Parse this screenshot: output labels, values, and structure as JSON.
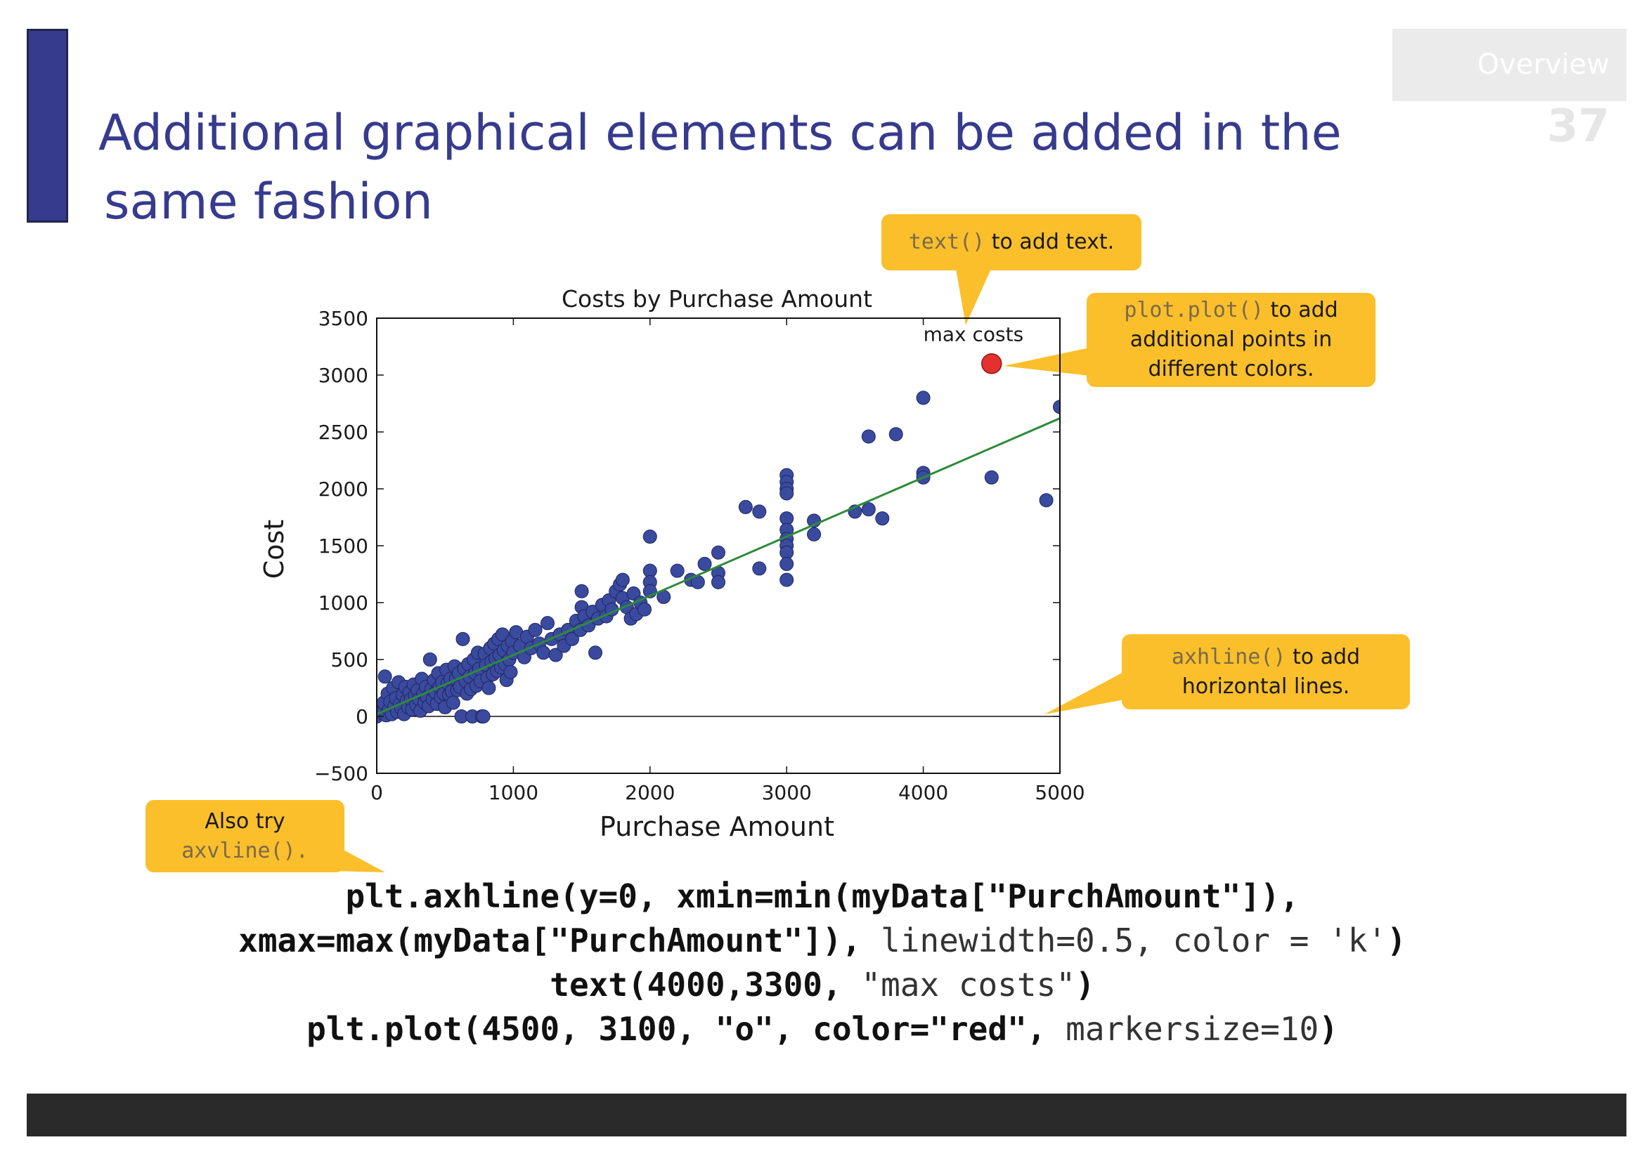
{
  "slide": {
    "title_line1": "Additional graphical elements can be added in the",
    "title_line2": "same fashion",
    "section": "Overview",
    "page_number": "37",
    "accent_color": "#363b8e",
    "callout_color": "#fbbf2c"
  },
  "callouts": {
    "text": {
      "code": "text()",
      "rest": " to add text."
    },
    "plot": {
      "code": "plot.plot()",
      "rest1": " to add",
      "line2": "additional points in",
      "line3": "different colors."
    },
    "axhline": {
      "code": "axhline()",
      "rest1": " to add",
      "line2": "horizontal lines."
    },
    "also_try": {
      "line1": "Also try",
      "code": "axvline()",
      "suffix": "."
    }
  },
  "code": {
    "l1_bold": "plt.axhline(y=0, xmin=min(myData[\"PurchAmount\"]),",
    "l2_bold": "xmax=max(myData[\"PurchAmount\"]),",
    "l2_reg": " linewidth=0.5, color = 'k'",
    "l2_end": ")",
    "l3_bold": "text(4000,3300,",
    "l3_reg": " \"max costs\"",
    "l3_end": ")",
    "l4_bold": "plt.plot(4500, 3100, \"o\", color=\"red\",",
    "l4_reg": " markersize=10",
    "l4_end": ")"
  },
  "chart_data": {
    "type": "scatter",
    "title": "Costs by Purchase Amount",
    "xlabel": "Purchase Amount",
    "ylabel": "Cost",
    "xlim": [
      0,
      5000
    ],
    "ylim": [
      -500,
      3500
    ],
    "xticks": [
      0,
      1000,
      2000,
      3000,
      4000,
      5000
    ],
    "yticks": [
      -500,
      0,
      500,
      1000,
      1500,
      2000,
      2500,
      3000,
      3500
    ],
    "grid": false,
    "point_color": "#3a4a9e",
    "fit_color": "#2e8b3a",
    "highlight_color": "#e53030",
    "hline": {
      "y": 0,
      "color": "k"
    },
    "fit_line": {
      "x": [
        0,
        5000
      ],
      "y": [
        20,
        2620
      ]
    },
    "annotation": {
      "x": 4000,
      "y": 3300,
      "text": "max costs"
    },
    "highlight": {
      "x": 4500,
      "y": 3100
    },
    "series": [
      {
        "points": [
          [
            0,
            0
          ],
          [
            20,
            80
          ],
          [
            40,
            30
          ],
          [
            50,
            120
          ],
          [
            60,
            350
          ],
          [
            70,
            10
          ],
          [
            80,
            200
          ],
          [
            90,
            60
          ],
          [
            100,
            130
          ],
          [
            110,
            20
          ],
          [
            120,
            250
          ],
          [
            130,
            90
          ],
          [
            140,
            160
          ],
          [
            150,
            40
          ],
          [
            160,
            300
          ],
          [
            170,
            110
          ],
          [
            180,
            70
          ],
          [
            190,
            190
          ],
          [
            200,
            20
          ],
          [
            210,
            260
          ],
          [
            220,
            140
          ],
          [
            230,
            80
          ],
          [
            240,
            210
          ],
          [
            250,
            150
          ],
          [
            260,
            60
          ],
          [
            270,
            280
          ],
          [
            280,
            180
          ],
          [
            290,
            100
          ],
          [
            300,
            230
          ],
          [
            310,
            150
          ],
          [
            320,
            50
          ],
          [
            330,
            330
          ],
          [
            340,
            200
          ],
          [
            350,
            120
          ],
          [
            360,
            260
          ],
          [
            370,
            170
          ],
          [
            380,
            90
          ],
          [
            390,
            500
          ],
          [
            400,
            240
          ],
          [
            410,
            150
          ],
          [
            420,
            320
          ],
          [
            430,
            210
          ],
          [
            440,
            110
          ],
          [
            450,
            380
          ],
          [
            460,
            260
          ],
          [
            470,
            170
          ],
          [
            480,
            300
          ],
          [
            490,
            200
          ],
          [
            500,
            80
          ],
          [
            510,
            410
          ],
          [
            520,
            290
          ],
          [
            530,
            190
          ],
          [
            540,
            330
          ],
          [
            550,
            220
          ],
          [
            560,
            120
          ],
          [
            570,
            440
          ],
          [
            580,
            330
          ],
          [
            590,
            230
          ],
          [
            600,
            380
          ],
          [
            610,
            260
          ],
          [
            620,
            0
          ],
          [
            630,
            680
          ],
          [
            640,
            420
          ],
          [
            650,
            310
          ],
          [
            660,
            200
          ],
          [
            670,
            460
          ],
          [
            680,
            350
          ],
          [
            690,
            240
          ],
          [
            700,
            0
          ],
          [
            710,
            500
          ],
          [
            720,
            380
          ],
          [
            730,
            270
          ],
          [
            740,
            560
          ],
          [
            750,
            420
          ],
          [
            760,
            310
          ],
          [
            770,
            0
          ],
          [
            780,
            0
          ],
          [
            790,
            550
          ],
          [
            800,
            450
          ],
          [
            810,
            340
          ],
          [
            820,
            250
          ],
          [
            830,
            600
          ],
          [
            840,
            480
          ],
          [
            850,
            370
          ],
          [
            860,
            640
          ],
          [
            870,
            510
          ],
          [
            880,
            400
          ],
          [
            890,
            680
          ],
          [
            900,
            540
          ],
          [
            910,
            430
          ],
          [
            920,
            720
          ],
          [
            930,
            580
          ],
          [
            940,
            460
          ],
          [
            950,
            320
          ],
          [
            960,
            620
          ],
          [
            970,
            500
          ],
          [
            980,
            390
          ],
          [
            990,
            660
          ],
          [
            1000,
            560
          ],
          [
            1020,
            740
          ],
          [
            1050,
            620
          ],
          [
            1080,
            520
          ],
          [
            1100,
            700
          ],
          [
            1130,
            600
          ],
          [
            1160,
            760
          ],
          [
            1190,
            640
          ],
          [
            1220,
            560
          ],
          [
            1250,
            820
          ],
          [
            1280,
            680
          ],
          [
            1310,
            540
          ],
          [
            1340,
            720
          ],
          [
            1370,
            620
          ],
          [
            1400,
            760
          ],
          [
            1430,
            680
          ],
          [
            1460,
            840
          ],
          [
            1490,
            760
          ],
          [
            1500,
            1100
          ],
          [
            1500,
            960
          ],
          [
            1520,
            880
          ],
          [
            1550,
            800
          ],
          [
            1580,
            920
          ],
          [
            1600,
            560
          ],
          [
            1620,
            860
          ],
          [
            1650,
            980
          ],
          [
            1680,
            880
          ],
          [
            1700,
            1020
          ],
          [
            1720,
            940
          ],
          [
            1750,
            1100
          ],
          [
            1780,
            1160
          ],
          [
            1800,
            1200
          ],
          [
            1800,
            1040
          ],
          [
            1830,
            960
          ],
          [
            1860,
            860
          ],
          [
            1880,
            1080
          ],
          [
            1900,
            900
          ],
          [
            1930,
            1000
          ],
          [
            1960,
            940
          ],
          [
            2000,
            1280
          ],
          [
            2000,
            1180
          ],
          [
            2000,
            1100
          ],
          [
            2000,
            1580
          ],
          [
            2100,
            1050
          ],
          [
            2200,
            1280
          ],
          [
            2300,
            1200
          ],
          [
            2350,
            1180
          ],
          [
            2400,
            1340
          ],
          [
            2500,
            1440
          ],
          [
            2500,
            1260
          ],
          [
            2500,
            1180
          ],
          [
            2700,
            1840
          ],
          [
            2800,
            1800
          ],
          [
            2800,
            1300
          ],
          [
            3000,
            2120
          ],
          [
            3000,
            2060
          ],
          [
            3000,
            2000
          ],
          [
            3000,
            1960
          ],
          [
            3000,
            1740
          ],
          [
            3000,
            1640
          ],
          [
            3000,
            1560
          ],
          [
            3000,
            1500
          ],
          [
            3000,
            1440
          ],
          [
            3000,
            1340
          ],
          [
            3000,
            1200
          ],
          [
            3200,
            1720
          ],
          [
            3200,
            1600
          ],
          [
            3500,
            1800
          ],
          [
            3600,
            1820
          ],
          [
            3600,
            2460
          ],
          [
            3700,
            1740
          ],
          [
            3800,
            2480
          ],
          [
            4000,
            2800
          ],
          [
            4000,
            2140
          ],
          [
            4000,
            2100
          ],
          [
            4500,
            2100
          ],
          [
            4900,
            1900
          ],
          [
            5000,
            2720
          ]
        ]
      }
    ]
  }
}
